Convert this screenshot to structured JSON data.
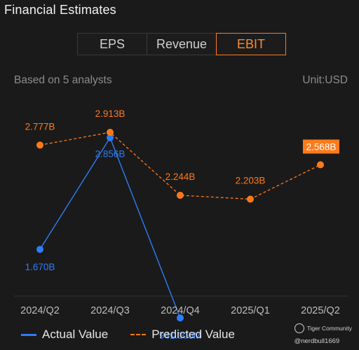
{
  "header": {
    "title": "Financial Estimates"
  },
  "tabs": [
    {
      "label": "EPS",
      "active": false
    },
    {
      "label": "Revenue",
      "active": false
    },
    {
      "label": "EBIT",
      "active": true
    }
  ],
  "subtitle": {
    "left": "Based on 5 analysts",
    "right": "Unit:USD"
  },
  "colors": {
    "actual": "#2f7cf6",
    "predicted": "#ff7a1a",
    "background": "#1a1a1a"
  },
  "chart_data": {
    "type": "line",
    "categories": [
      "2024/Q2",
      "2024/Q3",
      "2024/Q4",
      "2025/Q1",
      "2025/Q2"
    ],
    "series": [
      {
        "name": "Actual Value",
        "style": "solid",
        "values": [
          1.67,
          2.856,
          0.941,
          null,
          null
        ],
        "labels": [
          "1.670B",
          "2.856B",
          "941.000M",
          null,
          null
        ]
      },
      {
        "name": "Predicted Value",
        "style": "dashed",
        "values": [
          2.777,
          2.913,
          2.244,
          2.203,
          2.568
        ],
        "labels": [
          "2.777B",
          "2.913B",
          "2.244B",
          "2.203B",
          "2.568B"
        ],
        "highlighted_index": 4
      }
    ],
    "unit": "USD",
    "grid": false,
    "legend_position": "bottom-left"
  },
  "legend": [
    {
      "label": "Actual Value"
    },
    {
      "label": "Predicted Value"
    }
  ],
  "watermark": {
    "brand": "Tiger Community",
    "user": "@nerdbull1669",
    "icon": "tiger-community-logo-icon"
  }
}
